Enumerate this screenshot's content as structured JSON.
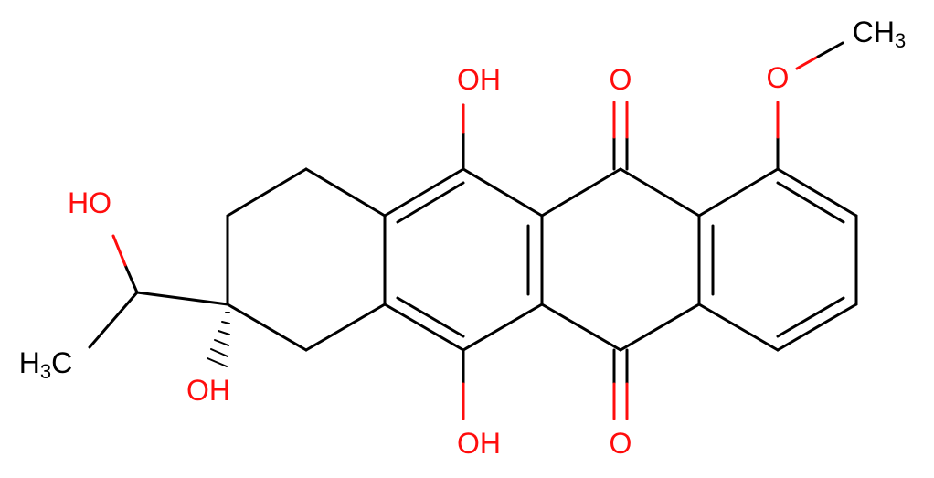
{
  "labels": {
    "oh_top": "OH",
    "o_top": "O",
    "o_methoxy": "O",
    "ch3": "CH3",
    "ho_left": "HO",
    "h3c": "H3C",
    "oh_center": "OH",
    "oh_bottom": "OH",
    "o_bottom": "O"
  }
}
